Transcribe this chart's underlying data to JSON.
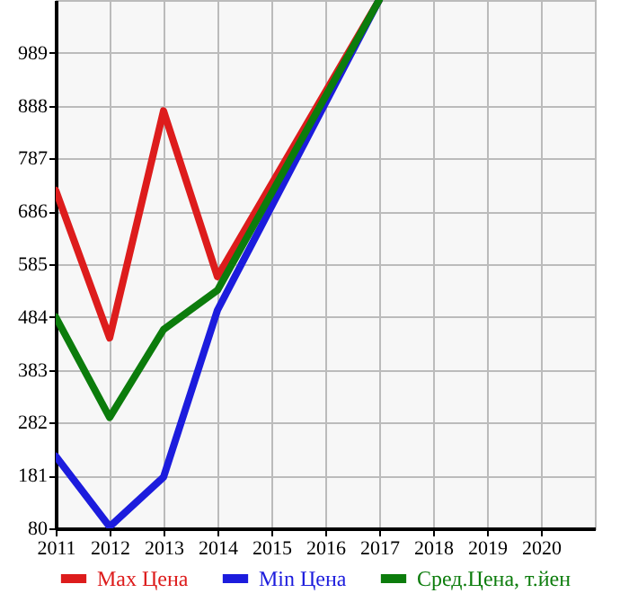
{
  "chart_data": {
    "type": "line",
    "xlim": [
      2011,
      2021
    ],
    "xticks": [
      2011,
      2012,
      2013,
      2014,
      2015,
      2016,
      2017,
      2018,
      2019,
      2020
    ],
    "ylim": [
      80,
      1090
    ],
    "yticks": [
      80,
      181,
      282,
      383,
      484,
      585,
      686,
      787,
      888,
      989
    ],
    "grid": true,
    "legend": "bottom",
    "series": [
      {
        "name": "Max Цена",
        "color": "#dd1c1c",
        "x": [
          2011,
          2012,
          2013,
          2014,
          2017
        ],
        "values": [
          726,
          444,
          878,
          561,
          1090
        ]
      },
      {
        "name": "Min Цена",
        "color": "#1c1cdd",
        "x": [
          2011,
          2012,
          2013,
          2014,
          2017
        ],
        "values": [
          218,
          83,
          178,
          497,
          1090
        ]
      },
      {
        "name": "Сред.Цена, т.йен",
        "color": "#0c7c0c",
        "x": [
          2011,
          2012,
          2013,
          2014,
          2017
        ],
        "values": [
          484,
          292,
          460,
          535,
          1090
        ]
      }
    ]
  }
}
